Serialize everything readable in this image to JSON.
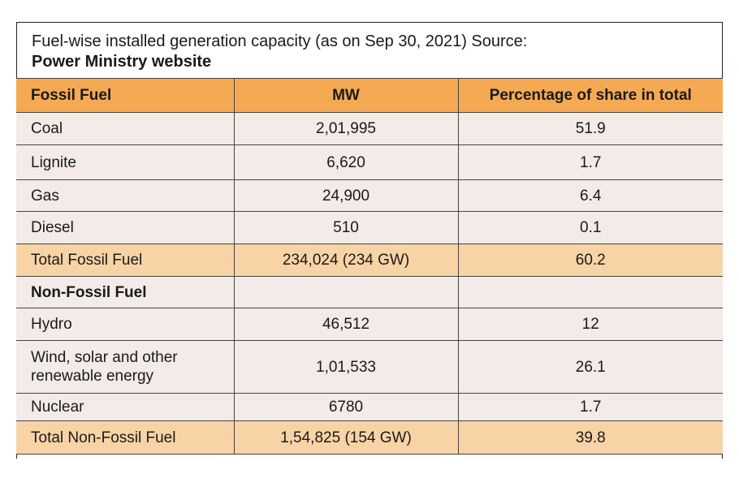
{
  "title": {
    "line1": "Fuel-wise installed generation capacity (as on Sep 30, 2021) Source:",
    "line2": "Power Ministry website"
  },
  "headers": [
    "Fossil Fuel",
    "MW",
    "Percentage of share in total"
  ],
  "rows": [
    {
      "name": "Coal",
      "mw": "2,01,995",
      "pct": "51.9"
    },
    {
      "name": "Lignite",
      "mw": "6,620",
      "pct": "1.7"
    },
    {
      "name": "Gas",
      "mw": "24,900",
      "pct": "6.4"
    },
    {
      "name": "Diesel",
      "mw": "510",
      "pct": "0.1"
    },
    {
      "name": "Total Fossil Fuel",
      "mw": "234,024 (234 GW)",
      "pct": "60.2"
    },
    {
      "name": "Non-Fossil Fuel",
      "mw": "",
      "pct": ""
    },
    {
      "name": "Hydro",
      "mw": "46,512",
      "pct": "12"
    },
    {
      "name": "Wind, solar and other renewable energy",
      "mw": "1,01,533",
      "pct": "26.1"
    },
    {
      "name": "Nuclear",
      "mw": "6780",
      "pct": "1.7"
    },
    {
      "name": "Total Non-Fossil Fuel",
      "mw": "1,54,825 (154 GW)",
      "pct": "39.8"
    }
  ],
  "colors": {
    "header_bg": "#f5a953",
    "row_bg": "#f2ebe7",
    "total_bg": "#f8d3a6"
  }
}
